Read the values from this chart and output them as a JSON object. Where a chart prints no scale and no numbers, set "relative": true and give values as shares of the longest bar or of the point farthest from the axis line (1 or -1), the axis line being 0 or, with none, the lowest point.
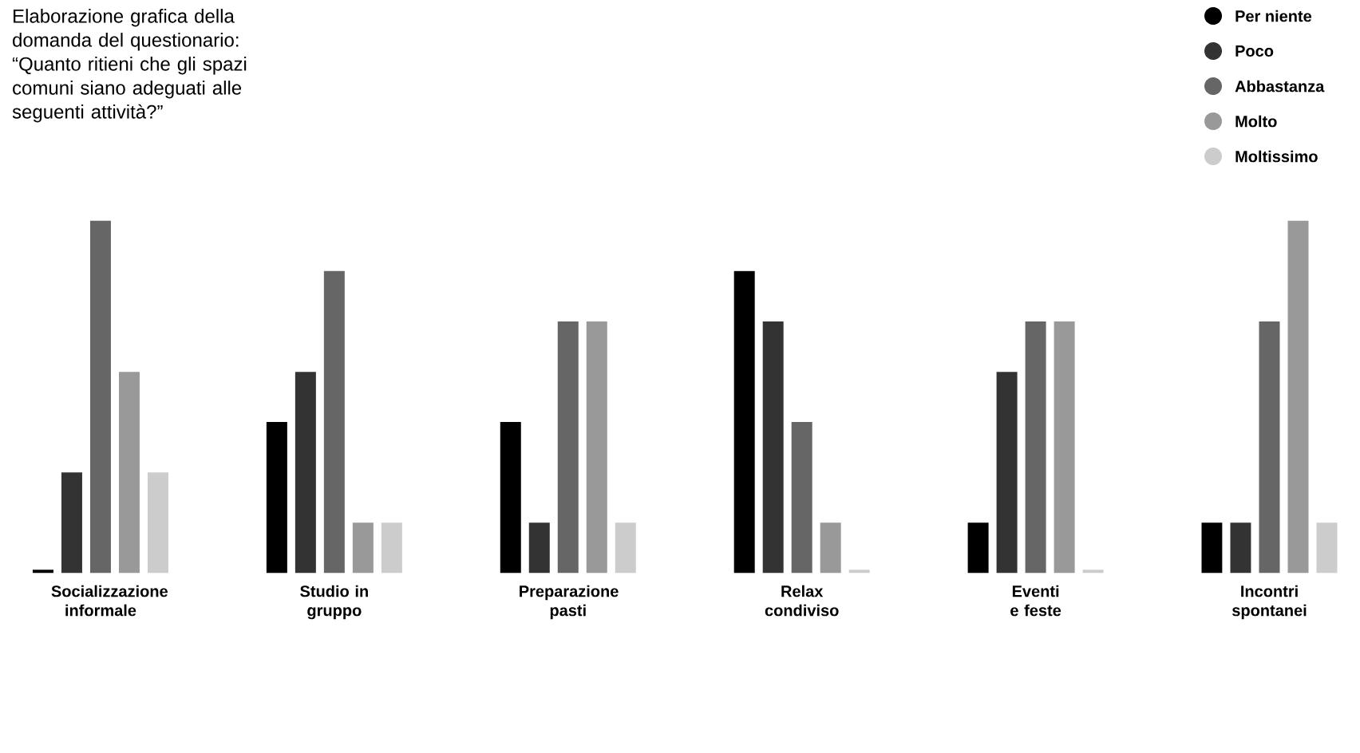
{
  "chart_data": {
    "type": "bar",
    "relative": true,
    "legend": "top right",
    "title": "Elaborazione grafica della domanda del questionario: “Quanto ritieni che gli spazi comuni siano adeguati alle seguenti attività?”",
    "categories": [
      "Socializzazione informale",
      "Studio in gruppo",
      "Preparazione pasti",
      "Relax condiviso",
      "Eventi e feste",
      "Incontri spontanei"
    ],
    "series": [
      {
        "name": "Per niente",
        "color": "#000000",
        "values": [
          0.01,
          0.429,
          0.429,
          0.857,
          0.143,
          0.143
        ]
      },
      {
        "name": "Poco",
        "color": "#333333",
        "values": [
          0.286,
          0.571,
          0.143,
          0.714,
          0.571,
          0.143
        ]
      },
      {
        "name": "Abbastanza",
        "color": "#666666",
        "values": [
          1,
          0.857,
          0.714,
          0.429,
          0.714,
          0.714
        ]
      },
      {
        "name": "Molto",
        "color": "#999999",
        "values": [
          0.571,
          0.143,
          0.714,
          0.143,
          0.714,
          1
        ]
      },
      {
        "name": "Moltissimo",
        "color": "#cccccc",
        "values": [
          0.286,
          0.143,
          0.143,
          0.01,
          0.01,
          0.143
        ]
      }
    ]
  }
}
